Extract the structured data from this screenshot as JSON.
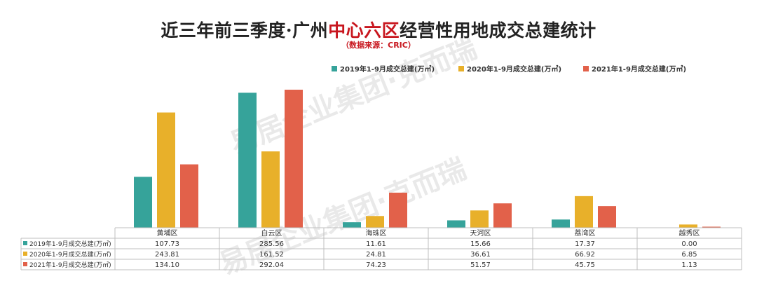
{
  "title": {
    "prefix": "近三年前三季度·广州",
    "highlight": "中心六区",
    "suffix": "经营性用地成交总建统计",
    "source_note": "（数据来源：CRIC）"
  },
  "watermark": {
    "line1": "易居企业集团·克而瑞",
    "line2": "易居企业集团·克而瑞"
  },
  "colors": {
    "s2019": "#36a39a",
    "s2020": "#e8b02a",
    "s2021": "#e2614a",
    "title_highlight": "#c8161e"
  },
  "chart_data": {
    "type": "bar",
    "title": "近三年前三季度·广州中心六区经营性用地成交总建统计",
    "subtitle": "（数据来源：CRIC）",
    "categories": [
      "黄埔区",
      "白云区",
      "海珠区",
      "天河区",
      "荔湾区",
      "越秀区"
    ],
    "series": [
      {
        "name": "2019年1-9月成交总建(万㎡)",
        "values": [
          107.73,
          285.56,
          11.61,
          15.66,
          17.37,
          0.0
        ],
        "display": [
          "107.73",
          "285.56",
          "11.61",
          "15.66",
          "17.37",
          "0.00"
        ]
      },
      {
        "name": "2020年1-9月成交总建(万㎡)",
        "values": [
          243.81,
          161.52,
          24.81,
          36.61,
          66.92,
          6.85
        ],
        "display": [
          "243.81",
          "161.52",
          "24.81",
          "36.61",
          "66.92",
          "6.85"
        ]
      },
      {
        "name": "2021年1-9月成交总建(万㎡)",
        "values": [
          134.1,
          292.04,
          74.23,
          51.57,
          45.75,
          1.13
        ],
        "display": [
          "134.10",
          "292.04",
          "74.23",
          "51.57",
          "45.75",
          "1.13"
        ]
      }
    ],
    "legend_position": "top-right",
    "data_table": true,
    "grid": false
  }
}
